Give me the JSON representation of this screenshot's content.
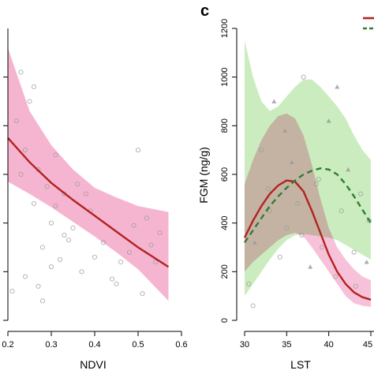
{
  "chart_data": [
    {
      "type": "line",
      "panel": "",
      "xlabel": "NDVI",
      "ylabel": "",
      "xlim": [
        0.2,
        0.6
      ],
      "ylim": [
        0,
        1200
      ],
      "xticks": [
        "0.2",
        "0.3",
        "0.4",
        "0.5",
        "0.6"
      ],
      "yticks": [],
      "grid": false,
      "fit": {
        "x": [
          0.2,
          0.25,
          0.3,
          0.35,
          0.4,
          0.45,
          0.5,
          0.57
        ],
        "y": [
          750,
          650,
          565,
          495,
          430,
          365,
          300,
          220
        ],
        "lower": [
          570,
          520,
          465,
          405,
          345,
          280,
          210,
          80
        ],
        "upper": [
          1120,
          860,
          720,
          620,
          545,
          505,
          470,
          445
        ],
        "color": "#b22222",
        "band_color": "#f2a2c4"
      },
      "points": {
        "x": [
          0.22,
          0.23,
          0.24,
          0.25,
          0.26,
          0.27,
          0.28,
          0.29,
          0.3,
          0.31,
          0.32,
          0.33,
          0.35,
          0.37,
          0.39,
          0.42,
          0.45,
          0.48,
          0.5,
          0.52,
          0.54,
          0.55,
          0.21,
          0.24,
          0.26,
          0.28,
          0.3,
          0.33,
          0.36,
          0.4,
          0.44,
          0.49,
          0.53,
          0.23,
          0.27,
          0.31,
          0.34,
          0.38,
          0.46,
          0.51
        ],
        "y": [
          820,
          1020,
          700,
          900,
          480,
          620,
          300,
          550,
          400,
          680,
          250,
          520,
          380,
          200,
          450,
          320,
          150,
          280,
          700,
          420,
          240,
          360,
          120,
          180,
          960,
          80,
          220,
          350,
          560,
          260,
          170,
          390,
          310,
          600,
          140,
          470,
          330,
          520,
          240,
          110
        ],
        "color": "#9a9a9a"
      }
    },
    {
      "type": "line",
      "panel": "c",
      "xlabel": "LST",
      "ylabel": "FGM (ng/g)",
      "xlim": [
        30,
        45
      ],
      "ylim": [
        0,
        1200
      ],
      "xticks": [
        "30",
        "35",
        "40",
        "45"
      ],
      "yticks": [
        "0",
        "200",
        "400",
        "600",
        "800",
        "1000",
        "1200"
      ],
      "grid": false,
      "series": [
        {
          "x": [
            30,
            31,
            32,
            33,
            34,
            35,
            36,
            37,
            38,
            39,
            40,
            41,
            42,
            43,
            44,
            45
          ],
          "y": [
            340,
            410,
            470,
            520,
            555,
            575,
            570,
            530,
            450,
            360,
            270,
            200,
            150,
            115,
            95,
            85
          ],
          "lower": [
            200,
            240,
            270,
            300,
            330,
            350,
            360,
            345,
            300,
            250,
            200,
            150,
            100,
            70,
            60,
            55
          ],
          "upper": [
            560,
            660,
            740,
            800,
            840,
            850,
            830,
            760,
            640,
            500,
            380,
            300,
            250,
            210,
            180,
            165
          ],
          "line_style": "solid",
          "color": "#b22222",
          "band_color": "#f2a2c4"
        },
        {
          "x": [
            30,
            31,
            32,
            33,
            34,
            35,
            36,
            37,
            38,
            39,
            40,
            41,
            42,
            43,
            44,
            45
          ],
          "y": [
            320,
            370,
            420,
            470,
            510,
            545,
            575,
            600,
            615,
            625,
            620,
            600,
            560,
            510,
            455,
            400
          ],
          "lower": [
            100,
            150,
            200,
            250,
            295,
            330,
            350,
            355,
            350,
            345,
            340,
            330,
            310,
            290,
            270,
            250
          ],
          "upper": [
            1150,
            1000,
            900,
            860,
            880,
            920,
            960,
            990,
            990,
            960,
            920,
            880,
            830,
            760,
            700,
            660
          ],
          "line_style": "dashed",
          "color": "#2e7d32",
          "band_color": "#b9e6a8"
        }
      ],
      "points": {
        "x": [
          30.5,
          31.2,
          32.0,
          32.8,
          33.5,
          34.2,
          35.0,
          35.6,
          36.3,
          37.0,
          37.8,
          38.5,
          39.2,
          40.0,
          40.8,
          41.5,
          42.3,
          43.0,
          43.8,
          44.5,
          31.0,
          33.0,
          34.8,
          36.8,
          38.8,
          41.0,
          43.2,
          44.8
        ],
        "y": [
          150,
          320,
          700,
          540,
          900,
          260,
          380,
          650,
          480,
          1000,
          220,
          560,
          300,
          820,
          180,
          450,
          620,
          280,
          520,
          240,
          60,
          450,
          780,
          350,
          580,
          960,
          140,
          410
        ],
        "color": "#9a9a9a"
      },
      "legend_placement": "top-right"
    }
  ]
}
